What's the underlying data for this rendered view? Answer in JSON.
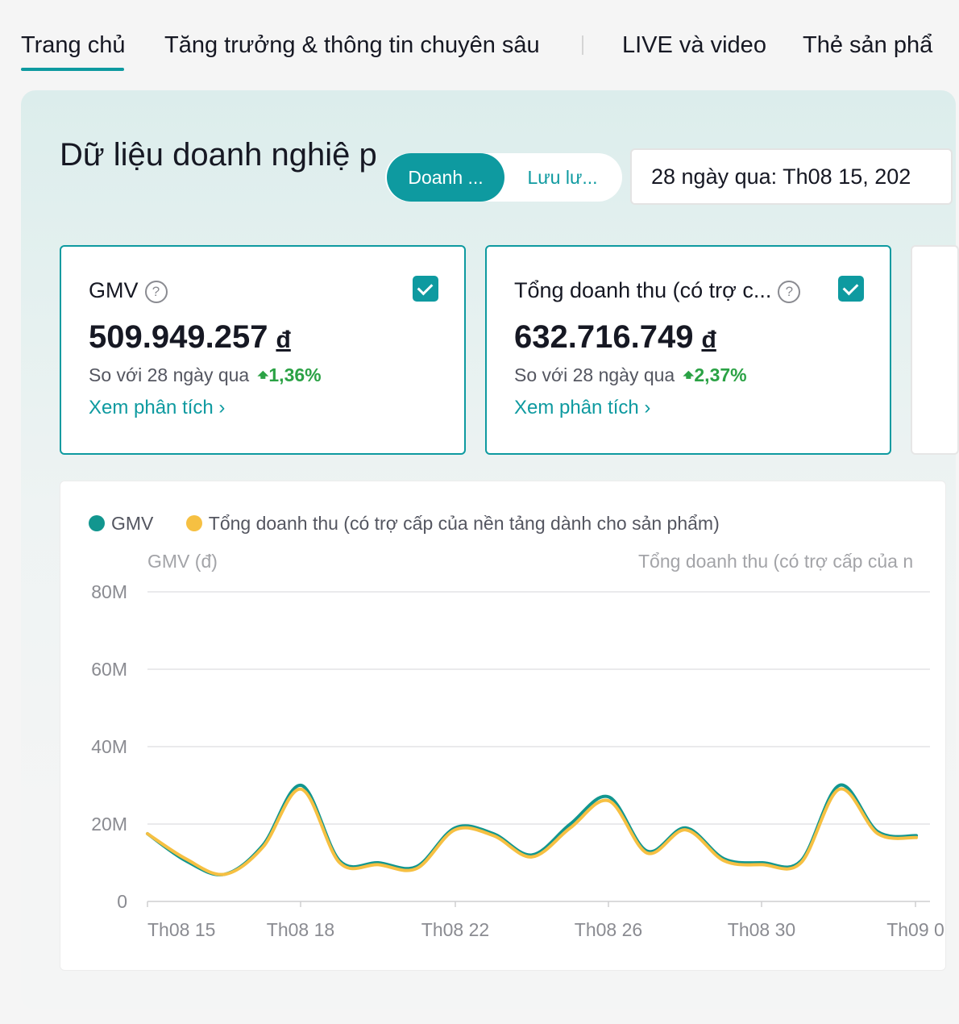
{
  "tabs": [
    {
      "label": "Trang chủ",
      "active": true
    },
    {
      "label": "Tăng trưởng & thông tin chuyên sâu"
    },
    {
      "label": "LIVE và video"
    },
    {
      "label": "Thẻ sản phẩ"
    }
  ],
  "section": {
    "title": "Dữ liệu doanh nghiệ p",
    "segment_on": "Doanh ...",
    "segment_off": "Lưu lư...",
    "date_range": "28 ngày qua:  Th08 15, 202"
  },
  "cards": [
    {
      "title": "GMV",
      "value": "509.949.257",
      "currency": "đ",
      "compare": "So với 28 ngày qua",
      "delta": "1,36%",
      "link": "Xem phân tích ›",
      "checked": true
    },
    {
      "title": "Tổng doanh thu (có trợ c...",
      "value": "632.716.749",
      "currency": "đ",
      "compare": "So với 28 ngày qua",
      "delta": "2,37%",
      "link": "Xem phân tích ›",
      "checked": true
    }
  ],
  "colors": {
    "accent": "#0e9aa0",
    "series_gmv": "#12968f",
    "series_revenue": "#f6c042",
    "positive": "#2ba245"
  },
  "chart_data": {
    "type": "line",
    "legend": [
      "GMV",
      "Tổng doanh thu (có trợ cấp của nền tảng dành cho sản phẩm)"
    ],
    "y_left_label": "GMV (đ)",
    "y_right_label": "Tổng doanh thu (có trợ cấp của n",
    "y_ticks": [
      "80M",
      "60M",
      "40M",
      "20M",
      "0"
    ],
    "ylim": [
      0,
      80
    ],
    "x_ticks": [
      "Th08 15",
      "Th08 18",
      "Th08 22",
      "Th08 26",
      "Th08 30",
      "Th09 0"
    ],
    "x": [
      "08-15",
      "08-16",
      "08-17",
      "08-18",
      "08-19",
      "08-20",
      "08-21",
      "08-22",
      "08-23",
      "08-24",
      "08-25",
      "08-26",
      "08-27",
      "08-28",
      "08-29",
      "08-30",
      "08-31",
      "09-01",
      "09-02",
      "09-03",
      "09-04"
    ],
    "series": [
      {
        "name": "GMV",
        "values": [
          17.5,
          10.5,
          7,
          14.5,
          30,
          10.5,
          10,
          9,
          19,
          17.5,
          12,
          20,
          27,
          13,
          19,
          11,
          10,
          10.5,
          30,
          18,
          17
        ]
      },
      {
        "name": "Tổng doanh thu (có trợ cấp của nền tảng dành cho sản phẩm)",
        "values": [
          17.5,
          11,
          7,
          14,
          29,
          10,
          9.5,
          8.5,
          18.5,
          17,
          11.5,
          19,
          26,
          12.5,
          18.5,
          10.5,
          9.5,
          10,
          29,
          17.5,
          16.5
        ]
      }
    ],
    "grid": true
  }
}
